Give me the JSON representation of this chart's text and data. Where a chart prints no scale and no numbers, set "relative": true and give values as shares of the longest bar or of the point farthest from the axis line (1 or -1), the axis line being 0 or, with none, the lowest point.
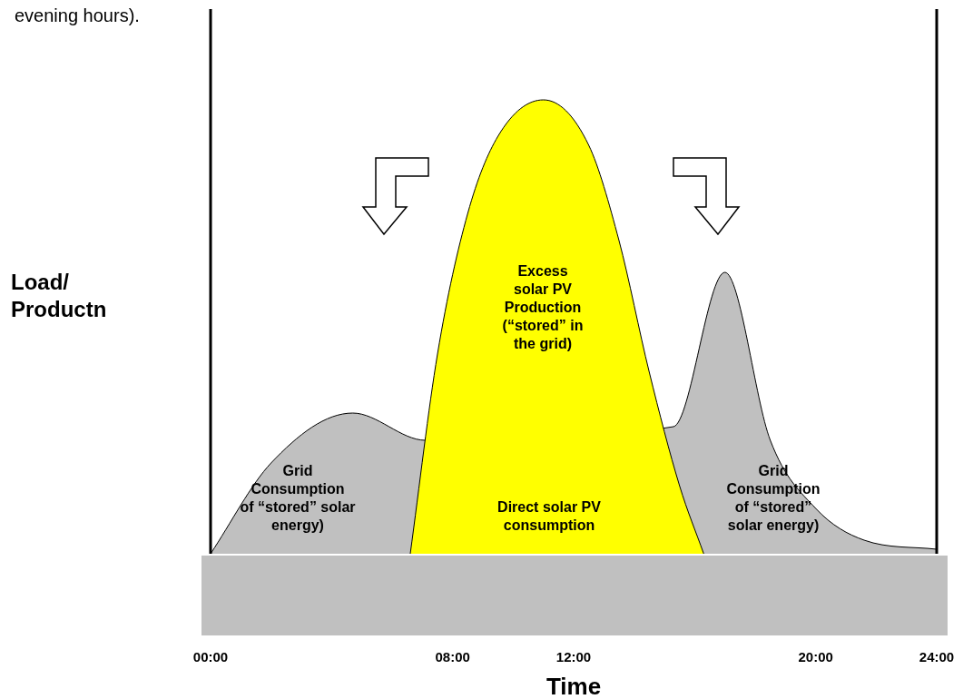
{
  "chart_data": {
    "type": "area",
    "relative": true,
    "xlabel": "Time",
    "ylabel": "Load/\nProductn",
    "xlim": [
      0,
      24
    ],
    "xticks": [
      {
        "value": 0,
        "label": "00:00"
      },
      {
        "value": 8,
        "label": "08:00"
      },
      {
        "value": 12,
        "label": "12:00"
      },
      {
        "value": 20,
        "label": "20:00"
      },
      {
        "value": 24,
        "label": "24:00"
      }
    ],
    "series": [
      {
        "color": "#c0c0c0",
        "x": [
          0,
          2,
          4.7,
          7.1,
          15.3,
          17,
          18.5,
          20,
          21.6,
          24
        ],
        "values": [
          0,
          0.2,
          0.31,
          0.25,
          0.28,
          0.62,
          0.25,
          0.1,
          0.03,
          0.01
        ]
      },
      {
        "color": "#ffff00",
        "x": [
          6.6,
          7.5,
          8.5,
          9.5,
          11,
          12.5,
          13.5,
          14.5,
          15.5,
          16.3
        ],
        "values": [
          0,
          0.44,
          0.75,
          0.92,
          1,
          0.9,
          0.69,
          0.4,
          0.15,
          0
        ]
      }
    ],
    "annotations": [
      "evening hours).",
      "Excess\nsolar PV\nProduction\n(“stored” in\nthe grid)",
      "Direct solar PV\nconsumption",
      "Grid\nConsumption\nof “stored” solar\nenergy)",
      "Grid\nConsumption\nof “stored”\nsolar energy)"
    ]
  }
}
